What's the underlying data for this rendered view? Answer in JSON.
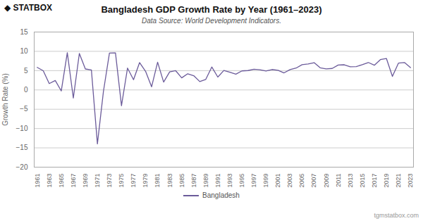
{
  "chart_data": {
    "type": "line",
    "title": "Bangladesh GDP Growth Rate by Year (1961–2023)",
    "subtitle": "Data Source: World Development Indicators.",
    "ylabel": "Growth Rate (%)",
    "logo": "◆ STATBOX",
    "watermark": "tgmstatbox.com",
    "x": [
      1961,
      1962,
      1963,
      1964,
      1965,
      1966,
      1967,
      1968,
      1969,
      1970,
      1971,
      1972,
      1973,
      1974,
      1975,
      1976,
      1977,
      1978,
      1979,
      1980,
      1981,
      1982,
      1983,
      1984,
      1985,
      1986,
      1987,
      1988,
      1989,
      1990,
      1991,
      1992,
      1993,
      1994,
      1995,
      1996,
      1997,
      1998,
      1999,
      2000,
      2001,
      2002,
      2003,
      2004,
      2005,
      2006,
      2007,
      2008,
      2009,
      2010,
      2011,
      2012,
      2013,
      2014,
      2015,
      2016,
      2017,
      2018,
      2019,
      2020,
      2021,
      2022,
      2023
    ],
    "series": [
      {
        "name": "Bangladesh",
        "color": "#6B5B9A",
        "values": [
          5.85,
          4.98,
          1.65,
          2.44,
          -0.26,
          9.65,
          -2.09,
          9.44,
          5.43,
          5.19,
          -13.97,
          -0.4,
          9.54,
          9.59,
          -4.09,
          5.66,
          2.65,
          7.08,
          4.82,
          0.82,
          7.18,
          2.03,
          4.67,
          4.98,
          3.13,
          4.19,
          3.69,
          2.17,
          2.73,
          5.94,
          3.34,
          5.04,
          4.58,
          4.08,
          4.93,
          5.02,
          5.36,
          5.22,
          4.91,
          5.29,
          5.08,
          4.42,
          5.26,
          5.66,
          6.54,
          6.72,
          7.06,
          5.74,
          5.45,
          5.57,
          6.46,
          6.52,
          6.01,
          6.06,
          6.55,
          7.11,
          6.4,
          7.86,
          8.15,
          3.51,
          6.94,
          7.1,
          5.78
        ]
      }
    ],
    "xlim": [
      1960.5,
      2023.5
    ],
    "xticks": [
      1961,
      1963,
      1965,
      1967,
      1969,
      1971,
      1973,
      1975,
      1977,
      1979,
      1981,
      1983,
      1985,
      1987,
      1989,
      1991,
      1993,
      1995,
      1997,
      1999,
      2001,
      2003,
      2005,
      2007,
      2009,
      2011,
      2013,
      2015,
      2017,
      2019,
      2021,
      2023
    ],
    "ylim": [
      -20,
      15
    ],
    "yticks": [
      -20,
      -15,
      -10,
      -5,
      0,
      5,
      10,
      15
    ],
    "grid": "y",
    "legend": "bottom"
  }
}
